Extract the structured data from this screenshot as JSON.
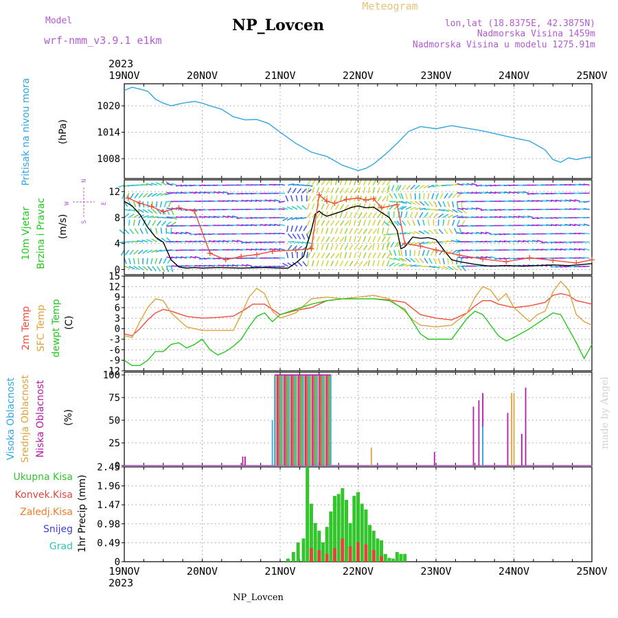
{
  "header": {
    "model_label": "Model",
    "model_name": "wrf-nmm_v3.9.1  e1km",
    "station": "NP_Lovcen",
    "chart_kind": "Meteogram",
    "lonlat": "lon,lat (18.8375E, 42.3875N)",
    "altitude": "Nadmorska Visina 1459m",
    "model_altitude": "Nadmorska Visina u modelu 1275.91m",
    "year_top": "2023",
    "year_bottom": "2023",
    "footer_station": "NP_Lovcen",
    "watermark": "made by Angel"
  },
  "colors": {
    "pressure": "#33a5e0",
    "t2m": "#ee4d3a",
    "tsfc": "#e0a23a",
    "dewpt": "#22c81e",
    "high_cloud": "#2fa8e6",
    "mid_cloud": "#e0a23a",
    "low_cloud": "#b81aa8",
    "total_precip": "#33c52c",
    "conv_precip": "#e0453a",
    "frz_precip": "#f07a2a",
    "snow": "#3d3ddb",
    "hail": "#2cc7b2",
    "model_purple": "#b45ad2",
    "meteogram_gold": "#e6c27a"
  },
  "chart_data": {
    "type": "line",
    "x_ticks": [
      "19NOV",
      "20NOV",
      "21NOV",
      "22NOV",
      "23NOV",
      "24NOV",
      "25NOV"
    ],
    "x_range_days": [
      0,
      6
    ],
    "panels": [
      {
        "id": "pressure",
        "ylabel_lines": [
          "Pritisak na nivou mora"
        ],
        "unit": "(hPa)",
        "yticks": [
          1008,
          1014,
          1020
        ],
        "ylim": [
          1003.5,
          1025
        ],
        "series": [
          {
            "color_key": "pressure",
            "x": [
              0,
              0.1,
              0.2,
              0.3,
              0.4,
              0.5,
              0.6,
              0.75,
              0.9,
              1.0,
              1.1,
              1.25,
              1.4,
              1.55,
              1.7,
              1.85,
              2.0,
              2.2,
              2.4,
              2.6,
              2.8,
              3.0,
              3.1,
              3.2,
              3.35,
              3.5,
              3.65,
              3.8,
              4.0,
              4.2,
              4.4,
              4.6,
              4.8,
              5.0,
              5.2,
              5.4,
              5.5,
              5.6,
              5.7,
              5.8,
              5.9,
              6.0
            ],
            "y": [
              1023.5,
              1024.2,
              1023.8,
              1023.3,
              1021.5,
              1020.6,
              1020.0,
              1020.6,
              1021.0,
              1020.6,
              1020.0,
              1019.2,
              1017.5,
              1016.8,
              1016.9,
              1016.0,
              1014.0,
              1011.5,
              1009.5,
              1008.5,
              1006.5,
              1005.3,
              1005.8,
              1006.8,
              1009.0,
              1011.5,
              1014.2,
              1015.3,
              1014.8,
              1015.5,
              1014.9,
              1014.3,
              1013.5,
              1012.7,
              1012.0,
              1010.0,
              1007.8,
              1007.2,
              1008.2,
              1007.8,
              1008.2,
              1008.4
            ]
          }
        ]
      },
      {
        "id": "wind",
        "ylabel_lines": [
          "10m Vjetar",
          "Brzina i Pravac"
        ],
        "unit": "(m/s)",
        "compass": {
          "n": "N",
          "e": "E",
          "w": "W",
          "s": "S"
        },
        "yticks": [
          0,
          4,
          8,
          12
        ],
        "ylim": [
          -0.8,
          13.8
        ],
        "series": [
          {
            "color_key": "black_speed",
            "x": [
              0,
              0.1,
              0.2,
              0.3,
              0.4,
              0.5,
              0.6,
              0.7,
              0.8,
              0.9,
              1.0,
              1.2,
              1.5,
              1.8,
              2.0,
              2.1,
              2.2,
              2.3,
              2.4,
              2.45,
              2.5,
              2.55,
              2.6,
              2.7,
              2.8,
              2.9,
              3.0,
              3.1,
              3.2,
              3.3,
              3.4,
              3.5,
              3.55,
              3.6,
              3.7,
              3.8,
              3.9,
              4.0,
              4.1,
              4.2,
              4.3,
              4.5,
              4.7,
              4.9,
              5.1,
              5.3,
              5.5,
              5.7,
              5.9,
              6.0
            ],
            "y": [
              10.5,
              9.8,
              8.5,
              6.5,
              5.0,
              4.2,
              1.5,
              0.4,
              0.2,
              0.3,
              0.2,
              0.3,
              0.2,
              0.3,
              0.2,
              0.2,
              1.0,
              2.0,
              6.0,
              8.5,
              9.0,
              8.5,
              8.2,
              8.6,
              9.0,
              9.5,
              9.8,
              9.5,
              9.6,
              8.8,
              8.0,
              6.0,
              3.2,
              3.5,
              5.0,
              4.8,
              4.9,
              4.6,
              3.0,
              1.5,
              1.2,
              0.8,
              0.5,
              0.6,
              0.5,
              0.6,
              0.7,
              0.6,
              0.8,
              0.9
            ]
          },
          {
            "color_key": "t2m",
            "marker": "plus",
            "x": [
              0.05,
              0.2,
              0.35,
              0.5,
              0.7,
              0.9,
              1.1,
              1.3,
              1.5,
              1.7,
              1.9,
              2.2,
              2.4,
              2.5,
              2.6,
              2.7,
              2.85,
              3.0,
              3.1,
              3.2,
              3.3,
              3.5,
              3.6,
              3.8,
              4.0,
              4.3,
              4.6,
              4.9,
              5.2,
              5.5,
              5.8,
              6.0
            ],
            "y": [
              11.0,
              10.2,
              9.7,
              8.9,
              9.5,
              9.0,
              2.5,
              1.5,
              2.0,
              2.3,
              2.8,
              3.0,
              3.2,
              11.5,
              10.5,
              10.2,
              10.8,
              11.0,
              10.7,
              10.9,
              9.5,
              10.0,
              4.0,
              3.6,
              3.0,
              2.2,
              1.6,
              1.2,
              1.8,
              1.4,
              1.0,
              1.5
            ]
          }
        ]
      },
      {
        "id": "temperature",
        "ylabel_lines": [
          "2m Temp",
          "SFC Temp",
          "dewpt Temp"
        ],
        "unit": "(C)",
        "yticks": [
          -12,
          -9,
          -6,
          -3,
          0,
          3,
          6,
          9,
          12,
          15
        ],
        "ylim": [
          -12,
          15
        ],
        "series": [
          {
            "color_key": "t2m",
            "x": [
              0,
              0.1,
              0.2,
              0.3,
              0.4,
              0.5,
              0.6,
              0.8,
              1.0,
              1.2,
              1.4,
              1.55,
              1.65,
              1.8,
              2.0,
              2.2,
              2.4,
              2.6,
              2.8,
              3.0,
              3.2,
              3.4,
              3.6,
              3.8,
              4.0,
              4.2,
              4.4,
              4.5,
              4.6,
              4.7,
              4.8,
              4.9,
              5.0,
              5.2,
              5.4,
              5.5,
              5.6,
              5.7,
              5.8,
              5.9,
              6.0
            ],
            "y": [
              -1.5,
              -2.0,
              0.0,
              2.5,
              4.5,
              5.5,
              5.0,
              3.5,
              3.0,
              3.2,
              3.6,
              5.5,
              7.0,
              7.0,
              4.0,
              5.2,
              6.0,
              8.0,
              8.5,
              8.5,
              8.5,
              8.2,
              7.5,
              4.0,
              3.0,
              2.5,
              4.5,
              6.5,
              8.0,
              8.0,
              7.0,
              6.5,
              6.0,
              6.5,
              7.5,
              9.5,
              10.0,
              9.5,
              8.0,
              7.5,
              7.0
            ]
          },
          {
            "color_key": "tsfc",
            "x": [
              0,
              0.1,
              0.2,
              0.3,
              0.4,
              0.5,
              0.6,
              0.8,
              1.0,
              1.2,
              1.4,
              1.5,
              1.6,
              1.7,
              1.8,
              1.9,
              2.0,
              2.2,
              2.4,
              2.6,
              2.8,
              3.0,
              3.2,
              3.4,
              3.6,
              3.7,
              3.8,
              4.0,
              4.2,
              4.4,
              4.5,
              4.6,
              4.7,
              4.8,
              4.9,
              5.0,
              5.2,
              5.3,
              5.4,
              5.5,
              5.6,
              5.7,
              5.8,
              5.9,
              6.0
            ],
            "y": [
              -2.0,
              -2.5,
              2.0,
              6.0,
              8.5,
              8.0,
              4.5,
              0.5,
              -0.5,
              -0.5,
              -0.5,
              4.0,
              9.0,
              11.5,
              10.0,
              5.0,
              3.0,
              4.5,
              8.5,
              9.0,
              8.5,
              9.0,
              9.5,
              8.5,
              5.0,
              2.5,
              1.0,
              0.5,
              1.0,
              4.5,
              9.0,
              12.0,
              11.0,
              8.0,
              10.0,
              6.0,
              2.0,
              4.0,
              5.0,
              10.5,
              13.5,
              11.0,
              4.0,
              2.0,
              1.0
            ]
          },
          {
            "color_key": "dewpt",
            "x": [
              0,
              0.1,
              0.2,
              0.3,
              0.4,
              0.5,
              0.6,
              0.7,
              0.8,
              0.9,
              1.0,
              1.1,
              1.2,
              1.3,
              1.4,
              1.5,
              1.6,
              1.7,
              1.8,
              1.9,
              2.0,
              2.2,
              2.4,
              2.6,
              2.8,
              3.0,
              3.2,
              3.4,
              3.6,
              3.8,
              3.9,
              4.0,
              4.2,
              4.3,
              4.4,
              4.5,
              4.6,
              4.7,
              4.8,
              4.9,
              5.0,
              5.2,
              5.4,
              5.5,
              5.6,
              5.7,
              5.8,
              5.9,
              6.0
            ],
            "y": [
              -9.0,
              -10.5,
              -10.5,
              -9.0,
              -6.5,
              -6.5,
              -4.5,
              -4.0,
              -5.5,
              -4.5,
              -3.0,
              -6.0,
              -7.5,
              -6.5,
              -5.0,
              -3.0,
              0.5,
              3.5,
              4.5,
              2.0,
              4.0,
              5.5,
              7.0,
              8.0,
              8.5,
              8.5,
              8.5,
              8.0,
              5.5,
              -1.5,
              -3.0,
              -3.0,
              -3.0,
              0.0,
              3.0,
              5.0,
              4.0,
              1.0,
              -2.0,
              -3.5,
              -2.5,
              0.0,
              3.0,
              4.5,
              4.0,
              0.0,
              -4.0,
              -8.5,
              -4.5
            ]
          }
        ]
      },
      {
        "id": "cloud",
        "ylabel_lines": [
          "Visoka Oblacnost",
          "Srednja Oblacnost",
          "Niska Oblacnost"
        ],
        "unit": "(%)",
        "yticks": [
          0,
          25,
          50,
          75,
          100
        ],
        "ylim": [
          0,
          103
        ],
        "bars": [
          {
            "color_key": "low_cloud",
            "x": [
              1.52,
              1.55
            ],
            "y": [
              10,
              10
            ]
          },
          {
            "color_key": "high_cloud",
            "x": [
              1.9
            ],
            "y": [
              50
            ]
          },
          {
            "color_key": "high_cloud",
            "x_range": [
              1.93,
              2.65
            ],
            "y": 100
          },
          {
            "color_key": "low_cloud",
            "x": [
              3.98,
              4.48,
              4.55,
              4.6,
              4.92,
              5.1,
              5.15
            ],
            "y": [
              15,
              65,
              72,
              80,
              58,
              35,
              86
            ]
          },
          {
            "color_key": "mid_cloud",
            "x": [
              3.17,
              4.97,
              5.0
            ],
            "y": [
              20,
              80,
              80
            ]
          },
          {
            "color_key": "high_cloud",
            "x": [
              4.6
            ],
            "y": [
              43
            ]
          }
        ]
      },
      {
        "id": "precip",
        "legend": [
          "Ukupna Kisa",
          "Konvek.Kisa",
          "Zaledj.Kisa",
          "Snijeg",
          "Grad"
        ],
        "ylabel_lines": [
          "1hr Precip (mm)"
        ],
        "yticks": [
          0,
          0.49,
          0.98,
          1.47,
          1.96,
          2.45
        ],
        "ylim": [
          0,
          2.45
        ],
        "bars": [
          {
            "color_key": "total_precip",
            "x": [
              2.1,
              2.17,
              2.23,
              2.3,
              2.35,
              2.4,
              2.45,
              2.5,
              2.55,
              2.6,
              2.65,
              2.7,
              2.75,
              2.8,
              2.85,
              2.9,
              2.95,
              3.0,
              3.05,
              3.1,
              3.15,
              3.2,
              3.25,
              3.3,
              3.35,
              3.4,
              3.45,
              3.5,
              3.55,
              3.6
            ],
            "y": [
              0.08,
              0.25,
              0.5,
              0.6,
              2.45,
              1.5,
              1.0,
              0.8,
              0.5,
              0.9,
              1.3,
              1.7,
              1.75,
              1.9,
              1.6,
              1.0,
              1.7,
              1.8,
              1.5,
              1.35,
              0.95,
              0.8,
              0.6,
              0.55,
              0.2,
              0.1,
              0.08,
              0.25,
              0.2,
              0.2
            ]
          },
          {
            "color_key": "conv_precip",
            "x": [
              2.4,
              2.5,
              2.6,
              2.7,
              2.8,
              2.9,
              3.0,
              3.1,
              3.2,
              3.3
            ],
            "y": [
              0.35,
              0.3,
              0.2,
              0.35,
              0.6,
              0.4,
              0.5,
              0.45,
              0.3,
              0.15
            ]
          }
        ]
      }
    ]
  }
}
